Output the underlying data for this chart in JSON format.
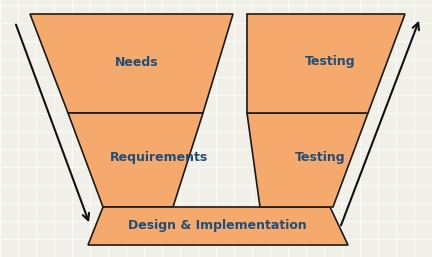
{
  "fill_color": "#F4A460",
  "fill_color2": "#F5A96D",
  "edge_color": "#1a1a1a",
  "text_color": "#1F4E79",
  "bg_color": "#F0F0E8",
  "grid_color": "#FFFFFF",
  "font_size": 9,
  "font_weight": "bold",
  "labels": {
    "needs": "Needs",
    "requirements": "Requirements",
    "design": "Design & Implementation",
    "testing_top": "Testing",
    "testing_mid": "Testing"
  },
  "arrow_color": "#111111"
}
